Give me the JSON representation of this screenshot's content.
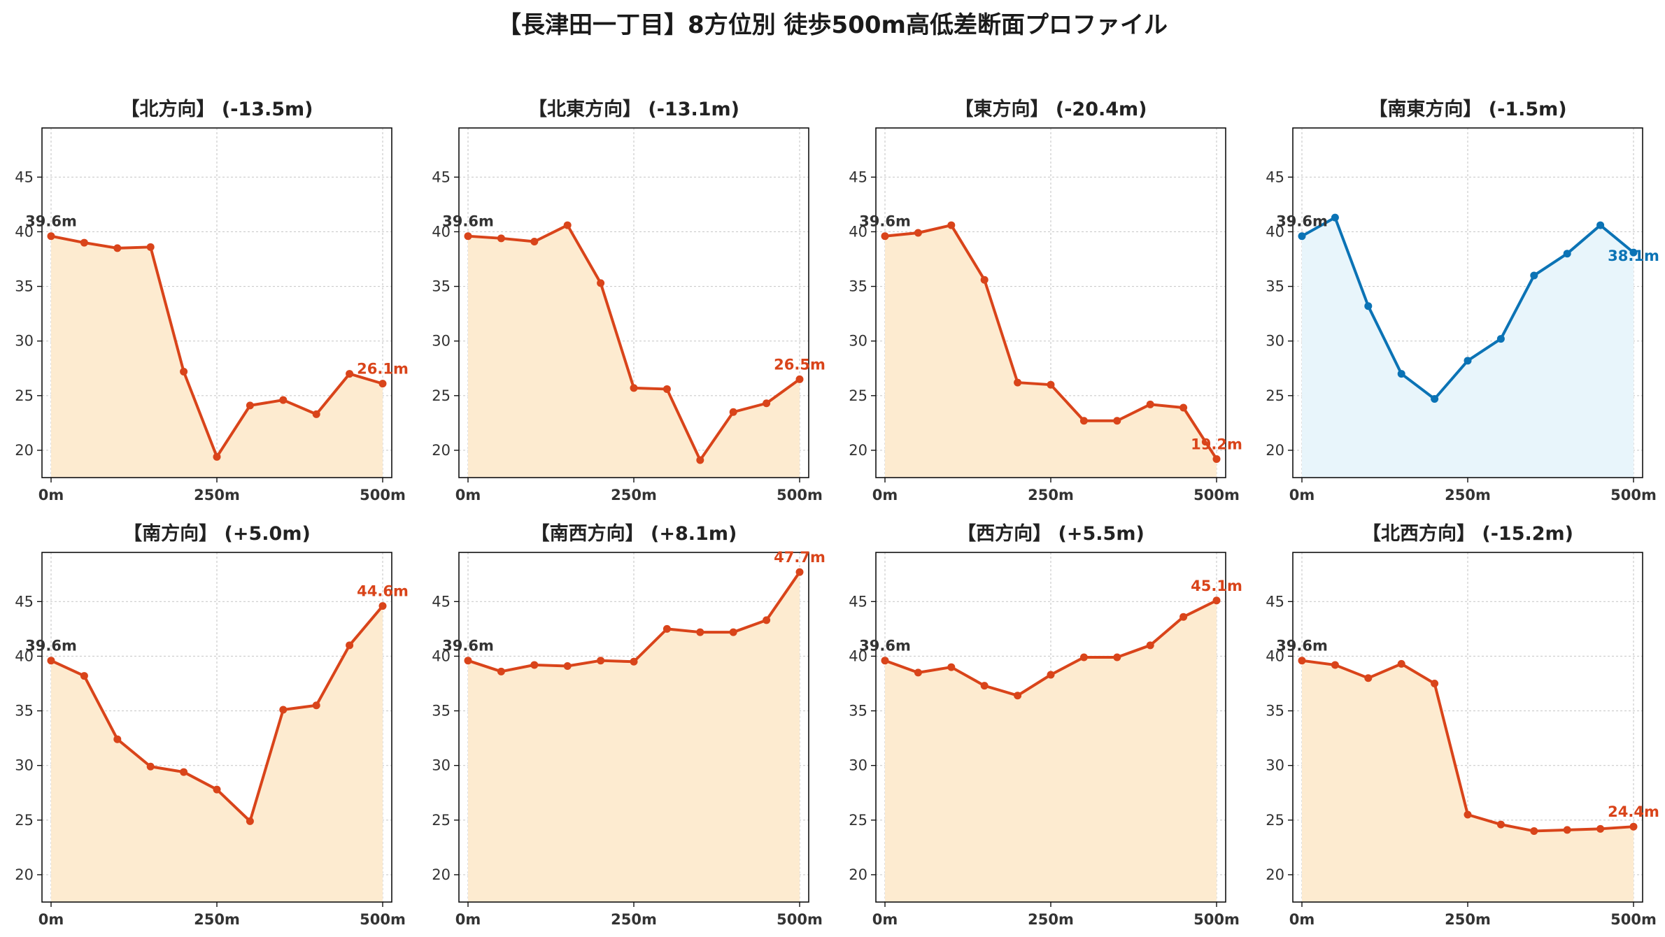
{
  "title": "【長津田一丁目】8方位別 徒歩500m高低差断面プロファイル",
  "colors": {
    "down_line": "#d9441a",
    "down_fill": "#fdebd0",
    "up_line": "#0b73b5",
    "up_fill": "#e8f5fb",
    "start_label": "#333333",
    "grid": "#cccccc"
  },
  "chart_data": [
    {
      "type": "area",
      "title": "【北方向】 (-13.5m)",
      "x": [
        0,
        50,
        100,
        150,
        200,
        250,
        300,
        350,
        400,
        450,
        500
      ],
      "values": [
        39.6,
        39.0,
        38.5,
        38.6,
        27.2,
        19.4,
        24.1,
        24.6,
        23.3,
        27.0,
        26.1
      ],
      "start_label": "39.6m",
      "end_label": "26.1m",
      "style": "orange",
      "ylim": [
        17.5,
        49.5
      ],
      "yticks": [
        "20",
        "25",
        "30",
        "35",
        "40",
        "45"
      ],
      "xticks": [
        "0m",
        "250m",
        "500m"
      ],
      "grid": true
    },
    {
      "type": "area",
      "title": "【北東方向】 (-13.1m)",
      "x": [
        0,
        50,
        100,
        150,
        200,
        250,
        300,
        350,
        400,
        450,
        500
      ],
      "values": [
        39.6,
        39.4,
        39.1,
        40.6,
        35.3,
        25.7,
        25.6,
        19.1,
        23.5,
        24.3,
        26.5
      ],
      "start_label": "39.6m",
      "end_label": "26.5m",
      "style": "orange",
      "ylim": [
        17.5,
        49.5
      ],
      "yticks": [
        "20",
        "25",
        "30",
        "35",
        "40",
        "45"
      ],
      "xticks": [
        "0m",
        "250m",
        "500m"
      ],
      "grid": true
    },
    {
      "type": "area",
      "title": "【東方向】 (-20.4m)",
      "x": [
        0,
        50,
        100,
        150,
        200,
        250,
        300,
        350,
        400,
        450,
        500
      ],
      "values": [
        39.6,
        39.9,
        40.6,
        35.6,
        26.2,
        26.0,
        22.7,
        22.7,
        24.2,
        23.9,
        19.2
      ],
      "start_label": "39.6m",
      "end_label": "19.2m",
      "style": "orange",
      "ylim": [
        17.5,
        49.5
      ],
      "yticks": [
        "20",
        "25",
        "30",
        "35",
        "40",
        "45"
      ],
      "xticks": [
        "0m",
        "250m",
        "500m"
      ],
      "grid": true
    },
    {
      "type": "area",
      "title": "【南東方向】 (-1.5m)",
      "x": [
        0,
        50,
        100,
        150,
        200,
        250,
        300,
        350,
        400,
        450,
        500
      ],
      "values": [
        39.6,
        41.3,
        33.2,
        27.0,
        24.7,
        28.2,
        30.2,
        36.0,
        38.0,
        40.6,
        38.1
      ],
      "start_label": "39.6m",
      "end_label": "38.1m",
      "style": "blue",
      "ylim": [
        17.5,
        49.5
      ],
      "yticks": [
        "20",
        "25",
        "30",
        "35",
        "40",
        "45"
      ],
      "xticks": [
        "0m",
        "250m",
        "500m"
      ],
      "grid": true
    },
    {
      "type": "area",
      "title": "【南方向】 (+5.0m)",
      "x": [
        0,
        50,
        100,
        150,
        200,
        250,
        300,
        350,
        400,
        450,
        500
      ],
      "values": [
        39.6,
        38.2,
        32.4,
        29.9,
        29.4,
        27.8,
        24.9,
        35.1,
        35.5,
        41.0,
        44.6
      ],
      "start_label": "39.6m",
      "end_label": "44.6m",
      "style": "orange",
      "ylim": [
        17.5,
        49.5
      ],
      "yticks": [
        "20",
        "25",
        "30",
        "35",
        "40",
        "45"
      ],
      "xticks": [
        "0m",
        "250m",
        "500m"
      ],
      "grid": true
    },
    {
      "type": "area",
      "title": "【南西方向】 (+8.1m)",
      "x": [
        0,
        50,
        100,
        150,
        200,
        250,
        300,
        350,
        400,
        450,
        500
      ],
      "values": [
        39.6,
        38.6,
        39.2,
        39.1,
        39.6,
        39.5,
        42.5,
        42.2,
        42.2,
        43.3,
        47.7
      ],
      "start_label": "39.6m",
      "end_label": "47.7m",
      "style": "orange",
      "ylim": [
        17.5,
        49.5
      ],
      "yticks": [
        "20",
        "25",
        "30",
        "35",
        "40",
        "45"
      ],
      "xticks": [
        "0m",
        "250m",
        "500m"
      ],
      "grid": true
    },
    {
      "type": "area",
      "title": "【西方向】 (+5.5m)",
      "x": [
        0,
        50,
        100,
        150,
        200,
        250,
        300,
        350,
        400,
        450,
        500
      ],
      "values": [
        39.6,
        38.5,
        39.0,
        37.3,
        36.4,
        38.3,
        39.9,
        39.9,
        41.0,
        43.6,
        45.1
      ],
      "start_label": "39.6m",
      "end_label": "45.1m",
      "style": "orange",
      "ylim": [
        17.5,
        49.5
      ],
      "yticks": [
        "20",
        "25",
        "30",
        "35",
        "40",
        "45"
      ],
      "xticks": [
        "0m",
        "250m",
        "500m"
      ],
      "grid": true
    },
    {
      "type": "area",
      "title": "【北西方向】 (-15.2m)",
      "x": [
        0,
        50,
        100,
        150,
        200,
        250,
        300,
        350,
        400,
        450,
        500
      ],
      "values": [
        39.6,
        39.2,
        38.0,
        39.3,
        37.5,
        25.5,
        24.6,
        24.0,
        24.1,
        24.2,
        24.4
      ],
      "start_label": "39.6m",
      "end_label": "24.4m",
      "style": "orange",
      "ylim": [
        17.5,
        49.5
      ],
      "yticks": [
        "20",
        "25",
        "30",
        "35",
        "40",
        "45"
      ],
      "xticks": [
        "0m",
        "250m",
        "500m"
      ],
      "grid": true
    }
  ]
}
